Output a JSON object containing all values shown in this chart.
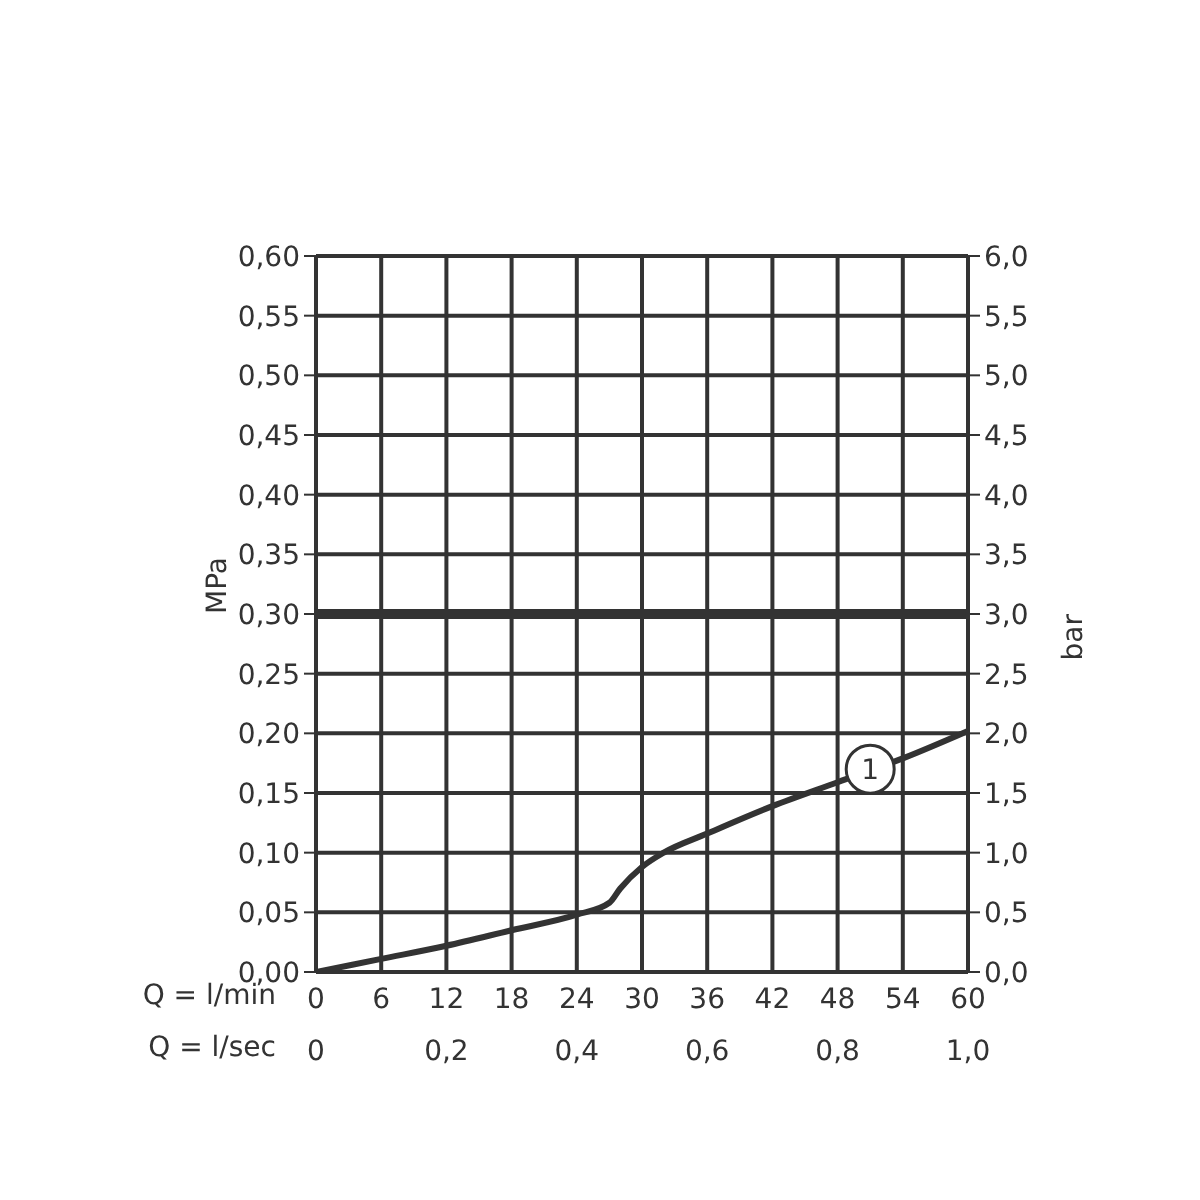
{
  "chart_data": {
    "type": "line",
    "xlabel": "Q = l/min",
    "x2label": "Q = l/sec",
    "ylabel": "MPa",
    "y2label": "bar",
    "x": [
      0,
      6,
      12,
      18,
      24,
      27,
      28,
      30,
      32,
      36,
      42,
      48,
      54,
      60
    ],
    "series": [
      {
        "color": "#333333",
        "values": [
          0,
          0.011,
          0.022,
          0.035,
          0.048,
          0.058,
          0.07,
          0.088,
          0.1,
          0.116,
          0.139,
          0.159,
          0.179,
          0.202
        ]
      }
    ],
    "xlim": [
      0,
      60
    ],
    "xticks": [
      0,
      6,
      12,
      18,
      24,
      30,
      36,
      42,
      48,
      54,
      60
    ],
    "x2lim": [
      0,
      1
    ],
    "x2ticks": [
      0,
      {
        "value": 0.2,
        "label": "0,2"
      },
      {
        "value": 0.4,
        "label": "0,4"
      },
      {
        "value": 0.6,
        "label": "0,6"
      },
      {
        "value": 0.8,
        "label": "0,8"
      },
      {
        "value": 1,
        "label": "1,0"
      }
    ],
    "ylim": [
      0,
      0.6
    ],
    "yticks": [
      {
        "value": 0,
        "label": "0,00"
      },
      {
        "value": 0.05,
        "label": "0,05"
      },
      {
        "value": 0.1,
        "label": "0,10"
      },
      {
        "value": 0.15,
        "label": "0,15"
      },
      {
        "value": 0.2,
        "label": "0,20"
      },
      {
        "value": 0.25,
        "label": "0,25"
      },
      {
        "value": 0.3,
        "label": "0,30"
      },
      {
        "value": 0.35,
        "label": "0,35"
      },
      {
        "value": 0.4,
        "label": "0,40"
      },
      {
        "value": 0.45,
        "label": "0,45"
      },
      {
        "value": 0.5,
        "label": "0,50"
      },
      {
        "value": 0.55,
        "label": "0,55"
      },
      {
        "value": 0.6,
        "label": "0,60"
      }
    ],
    "y2lim": [
      0,
      6
    ],
    "y2ticks": [
      {
        "value": 0,
        "label": "0,0"
      },
      {
        "value": 0.5,
        "label": "0,5"
      },
      {
        "value": 1,
        "label": "1,0"
      },
      {
        "value": 1.5,
        "label": "1,5"
      },
      {
        "value": 2,
        "label": "2,0"
      },
      {
        "value": 2.5,
        "label": "2,5"
      },
      {
        "value": 3,
        "label": "3,0"
      },
      {
        "value": 3.5,
        "label": "3,5"
      },
      {
        "value": 4,
        "label": "4,0"
      },
      {
        "value": 4.5,
        "label": "4,5"
      },
      {
        "value": 5,
        "label": "5,0"
      },
      {
        "value": 5.5,
        "label": "5,5"
      },
      {
        "value": 6,
        "label": "6,0"
      }
    ],
    "ref_lines": [
      {
        "axis": "y",
        "value": 0.3,
        "color": "#333333"
      }
    ],
    "annotations": [
      {
        "text": "1",
        "x": 51,
        "y": 0.17
      }
    ],
    "grid": true,
    "marker": "none",
    "line_style": "solid"
  }
}
